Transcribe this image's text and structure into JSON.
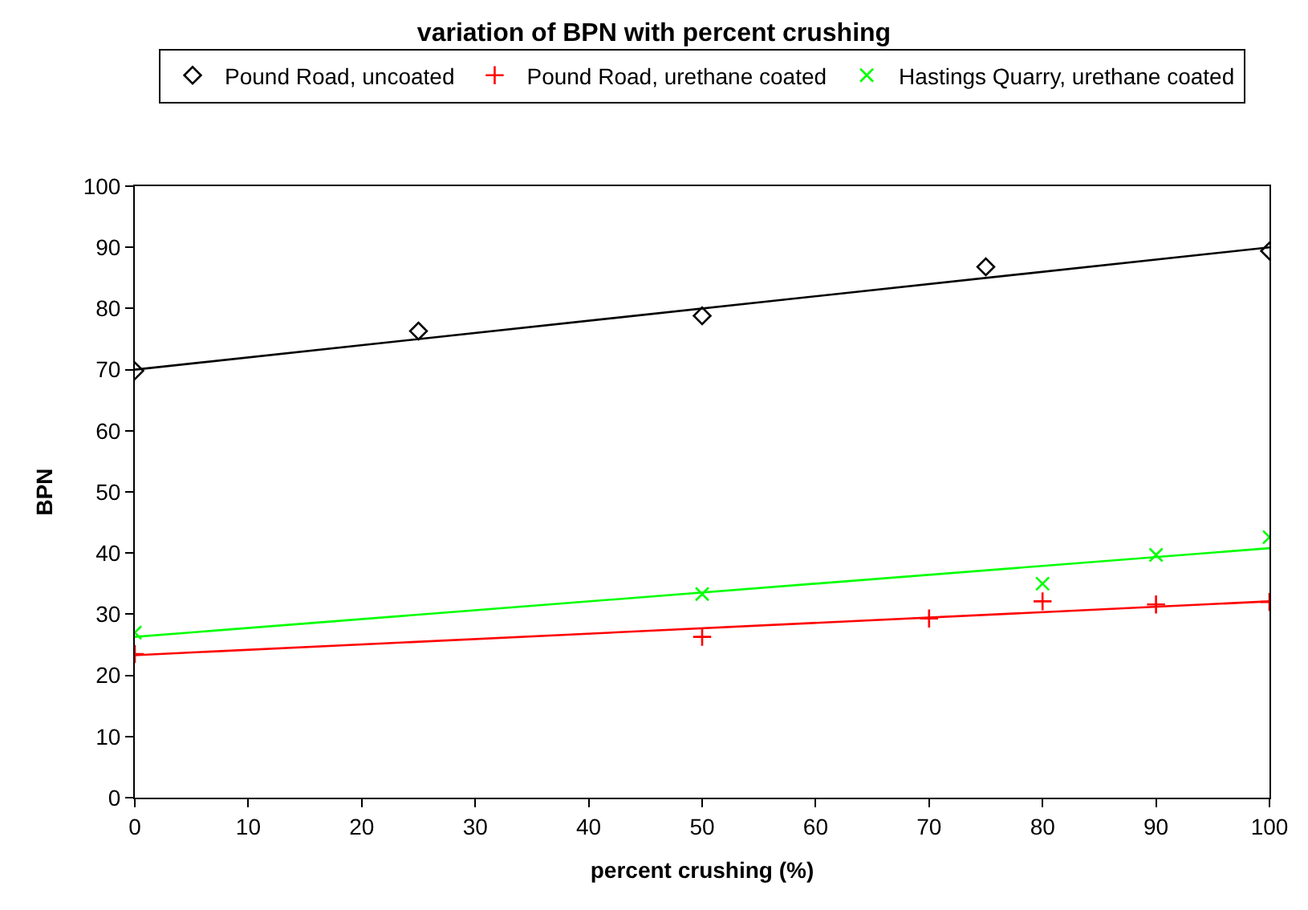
{
  "chart_data": {
    "type": "scatter",
    "title": "variation of BPN with percent crushing",
    "xlabel": "percent crushing (%)",
    "ylabel": "BPN",
    "xlim": [
      0,
      100
    ],
    "xticks": [
      0,
      10,
      20,
      30,
      40,
      50,
      60,
      70,
      80,
      90,
      100
    ],
    "ylim": [
      0,
      100
    ],
    "yticks": [
      0,
      10,
      20,
      30,
      40,
      50,
      60,
      70,
      80,
      90,
      100
    ],
    "legend": "top",
    "series": [
      {
        "name": "Pound Road, uncoated",
        "color": "#000000",
        "marker": "diamond",
        "x": [
          0,
          25,
          50,
          75,
          100
        ],
        "values": [
          69.8,
          76.3,
          78.8,
          86.8,
          89.4
        ]
      },
      {
        "name": "Pound Road, urethane coated",
        "color": "#ff0000",
        "marker": "cross",
        "x": [
          0,
          50,
          70,
          80,
          90,
          100
        ],
        "values": [
          23.5,
          26.3,
          29.3,
          32.1,
          31.6,
          32
        ]
      },
      {
        "name": "Hastings Quarry, urethane coated",
        "color": "#00ff00",
        "marker": "x",
        "x": [
          0,
          50,
          80,
          90,
          100
        ],
        "values": [
          27,
          33.3,
          35,
          39.7,
          42.6
        ]
      },
      {
        "type": "line",
        "color": "#000000",
        "marker": "none",
        "x": [
          0,
          100
        ],
        "values": [
          70,
          90
        ]
      },
      {
        "type": "line",
        "color": "#ff0000",
        "marker": "none",
        "x": [
          0,
          100
        ],
        "values": [
          23.3,
          32.1
        ]
      },
      {
        "type": "line",
        "color": "#00ff00",
        "marker": "none",
        "x": [
          0,
          100
        ],
        "values": [
          26.3,
          40.8
        ]
      }
    ]
  }
}
